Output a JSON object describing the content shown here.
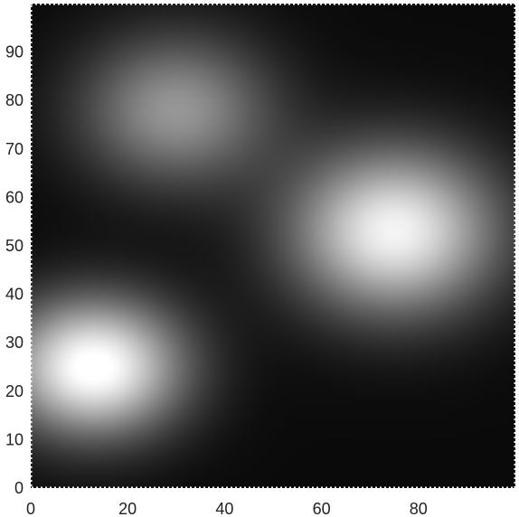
{
  "chart_data": {
    "type": "heatmap",
    "title": "",
    "xlabel": "",
    "ylabel": "",
    "xlim": [
      0,
      100
    ],
    "ylim": [
      0,
      100
    ],
    "colormap": "gray",
    "background_value": 0.04,
    "grid": false,
    "legend": "none",
    "x_ticks": [
      0,
      20,
      40,
      60,
      80
    ],
    "y_ticks": [
      0,
      10,
      20,
      30,
      40,
      50,
      60,
      70,
      80,
      90
    ],
    "peaks": [
      {
        "x": 13,
        "y": 25,
        "sigma_x": 13,
        "sigma_y": 10,
        "amplitude": 1.0
      },
      {
        "x": 75,
        "y": 53,
        "sigma_x": 15,
        "sigma_y": 12,
        "amplitude": 0.92
      },
      {
        "x": 30,
        "y": 78,
        "sigma_x": 14,
        "sigma_y": 11,
        "amplitude": 0.55
      }
    ]
  }
}
